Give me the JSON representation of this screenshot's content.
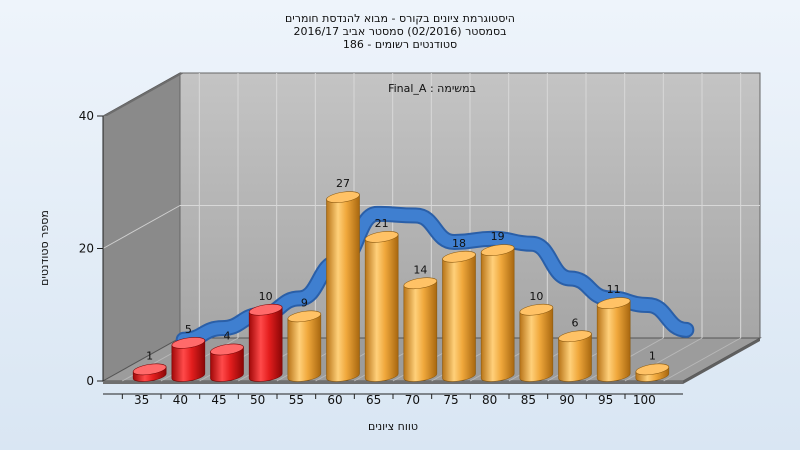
{
  "chart_data": {
    "type": "bar",
    "title_lines": [
      "היסטוגרמת ציונים בקורס - מבוא להנדסת חומרים",
      "בסמסטר  (02/2016)  סמסטר אביב 2016/17",
      "סטודנטים רשומים - 186"
    ],
    "subtitle": "במשימה : Final_A",
    "xlabel": "טווח ציונים",
    "ylabel": "מספר סטודנטים",
    "ylim": [
      0,
      40
    ],
    "yticks": [
      0,
      20,
      40
    ],
    "categories": [
      "35",
      "40",
      "45",
      "50",
      "55",
      "60",
      "65",
      "70",
      "75",
      "80",
      "85",
      "90",
      "95",
      "100"
    ],
    "values": [
      1,
      5,
      4,
      10,
      9,
      27,
      21,
      14,
      18,
      19,
      10,
      6,
      11,
      1
    ],
    "colors": {
      "fail": "#e41e1e",
      "pass": "#f0a83c",
      "curve": "#3f7fd0",
      "wall": "#b5b5b5",
      "side_wall": "#8a8a8a",
      "floor": "#9c9c9c"
    },
    "fail_threshold": "55",
    "grid": true
  }
}
